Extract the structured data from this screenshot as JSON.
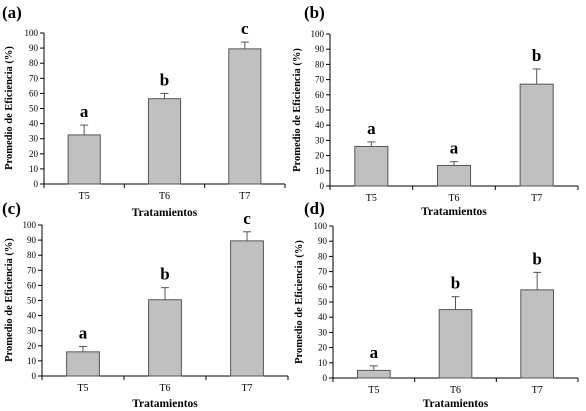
{
  "chart_data": [
    {
      "type": "bar",
      "panel": "(a)",
      "categories": [
        "T5",
        "T6",
        "T7"
      ],
      "values": [
        32.5,
        56.5,
        89.5
      ],
      "errors": [
        6.5,
        3.5,
        4.5
      ],
      "letters": [
        "a",
        "b",
        "c"
      ],
      "ylabel": "Promedio de Eficiencia (%)",
      "xlabel": "Tratamientos",
      "ylim": [
        0,
        100
      ],
      "yticks": [
        0,
        10,
        20,
        30,
        40,
        50,
        60,
        70,
        80,
        90,
        100
      ],
      "grid": false
    },
    {
      "type": "bar",
      "panel": "(b)",
      "categories": [
        "T5",
        "T6",
        "T7"
      ],
      "values": [
        26,
        13.5,
        67
      ],
      "errors": [
        3,
        2.5,
        10
      ],
      "letters": [
        "a",
        "a",
        "b"
      ],
      "ylabel": "Promedio de Eficiencia (%)",
      "xlabel": "Tratamientos",
      "ylim": [
        0,
        100
      ],
      "yticks": [
        0,
        10,
        20,
        30,
        40,
        50,
        60,
        70,
        80,
        90,
        100
      ],
      "grid": false
    },
    {
      "type": "bar",
      "panel": "(c)",
      "categories": [
        "T5",
        "T6",
        "T7"
      ],
      "values": [
        16,
        50.5,
        89.5
      ],
      "errors": [
        3.5,
        8,
        6
      ],
      "letters": [
        "a",
        "b",
        "c"
      ],
      "ylabel": "Promedio de Eficiencia (%)",
      "xlabel": "Tratamientos",
      "ylim": [
        0,
        100
      ],
      "yticks": [
        0,
        10,
        20,
        30,
        40,
        50,
        60,
        70,
        80,
        90,
        100
      ],
      "grid": false
    },
    {
      "type": "bar",
      "panel": "(d)",
      "categories": [
        "T5",
        "T6",
        "T7"
      ],
      "values": [
        5,
        45,
        58
      ],
      "errors": [
        3,
        8.5,
        11.5
      ],
      "letters": [
        "a",
        "b",
        "b"
      ],
      "ylabel": "Promedio de Eficiencia (%)",
      "xlabel": "Tratamientos",
      "ylim": [
        0,
        100
      ],
      "yticks": [
        0,
        10,
        20,
        30,
        40,
        50,
        60,
        70,
        80,
        90,
        100
      ],
      "grid": false
    }
  ],
  "colors": {
    "bar_fill": "#c0c0c0",
    "bar_stroke": "#555555",
    "axis": "#000000",
    "error_bar": "#555555",
    "text": "#000000"
  }
}
